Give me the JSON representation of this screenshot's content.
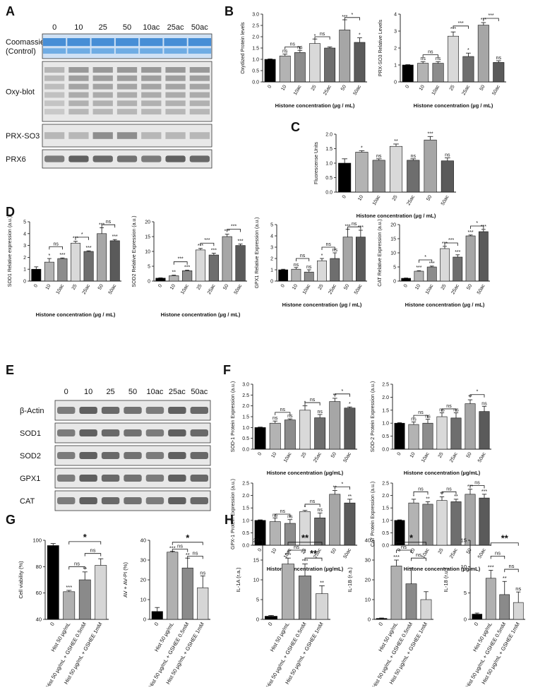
{
  "figure": {
    "letters": [
      "A",
      "B",
      "C",
      "D",
      "E",
      "F",
      "G",
      "H"
    ]
  },
  "panel_a": {
    "lanes": [
      "0",
      "10",
      "25",
      "50",
      "10ac",
      "25ac",
      "50ac"
    ],
    "rows": [
      {
        "label": "Coomassie\n(Control)",
        "style": "coomassie"
      },
      {
        "label": "Oxy-blot",
        "style": "smear"
      },
      {
        "label": "PRX-SO3",
        "style": "faint"
      },
      {
        "label": "PRX6",
        "style": "bands"
      }
    ]
  },
  "panel_e": {
    "lanes": [
      "0",
      "10",
      "25",
      "50",
      "10ac",
      "25ac",
      "50ac"
    ],
    "rows": [
      "β-Actin",
      "SOD1",
      "SOD2",
      "GPX1",
      "CAT"
    ]
  },
  "chart_data": [
    {
      "id": "B1",
      "type": "bar",
      "ylabel": "Oxydized Protein levels",
      "xlabel": "Histone concentration (µg / mL)",
      "categories": [
        "0",
        "10",
        "10ac",
        "25",
        "25ac",
        "50",
        "50ac"
      ],
      "values": [
        1.0,
        1.15,
        1.3,
        1.7,
        1.5,
        2.3,
        1.75
      ],
      "errors": [
        0.02,
        0.08,
        0.1,
        0.2,
        0.05,
        0.45,
        0.2
      ],
      "ylim": [
        0,
        3.0
      ],
      "yticks": [
        0,
        0.5,
        1.0,
        1.5,
        2.0,
        2.5,
        3.0
      ],
      "sig": [
        "",
        "ns",
        "ns",
        "*",
        "",
        "***",
        "*"
      ],
      "brackets": [
        {
          "a": 1,
          "b": 2,
          "label": "ns",
          "level": 1.55
        },
        {
          "a": 3,
          "b": 4,
          "label": "ns",
          "level": 2.0
        },
        {
          "a": 5,
          "b": 6,
          "label": "*",
          "level": 2.85
        }
      ]
    },
    {
      "id": "B2",
      "type": "bar",
      "ylabel": "PRX-SO3 Relative Levels",
      "xlabel": "Histone concentration (µg / mL)",
      "categories": [
        "0",
        "10",
        "10ac",
        "25",
        "25ac",
        "50",
        "50ac"
      ],
      "values": [
        1.0,
        1.1,
        1.1,
        2.7,
        1.5,
        3.35,
        1.15
      ],
      "errors": [
        0.02,
        0.1,
        0.1,
        0.25,
        0.2,
        0.15,
        0.1
      ],
      "ylim": [
        0,
        4
      ],
      "yticks": [
        0,
        1,
        2,
        3,
        4
      ],
      "sig": [
        "",
        "ns",
        "ns",
        "***",
        "*",
        "***",
        "ns"
      ],
      "brackets": [
        {
          "a": 1,
          "b": 2,
          "label": "ns",
          "level": 1.6
        },
        {
          "a": 3,
          "b": 4,
          "label": "***",
          "level": 3.3
        },
        {
          "a": 5,
          "b": 6,
          "label": "***",
          "level": 3.75
        }
      ]
    },
    {
      "id": "C",
      "type": "bar",
      "ylabel": "Fluorescense Units",
      "xlabel": "Histone concentration (µg / mL)",
      "categories": [
        "0",
        "10",
        "10ac",
        "25",
        "25ac",
        "50",
        "50ac"
      ],
      "values": [
        1.0,
        1.38,
        1.1,
        1.58,
        1.1,
        1.8,
        1.08
      ],
      "errors": [
        0.15,
        0.05,
        0.05,
        0.08,
        0.05,
        0.12,
        0.1
      ],
      "ylim": [
        0,
        2.0
      ],
      "yticks": [
        0,
        0.5,
        1.0,
        1.5,
        2.0
      ],
      "sig": [
        "",
        "*",
        "ns",
        "**",
        "ns",
        "***",
        "ns"
      ],
      "brackets": []
    },
    {
      "id": "D1",
      "type": "bar",
      "ylabel": "SOD1 Relative expression (a.u.)",
      "xlabel": "",
      "categories": [
        "0",
        "10",
        "10ac",
        "25",
        "25ac",
        "50",
        "50ac"
      ],
      "values": [
        1.0,
        1.6,
        1.9,
        3.2,
        2.5,
        4.0,
        3.4
      ],
      "errors": [
        0.2,
        0.3,
        0.05,
        0.15,
        0.05,
        0.5,
        0.1
      ],
      "ylim": [
        0,
        5
      ],
      "yticks": [
        0,
        1,
        2,
        3,
        4,
        5
      ],
      "sig": [
        "",
        "*",
        "***",
        "***",
        "***",
        "***",
        "***"
      ],
      "brackets": [
        {
          "a": 1,
          "b": 2,
          "label": "ns",
          "level": 2.9
        },
        {
          "a": 3,
          "b": 4,
          "label": "*",
          "level": 3.7
        },
        {
          "a": 5,
          "b": 6,
          "label": "ns",
          "level": 4.75
        }
      ]
    },
    {
      "id": "D2",
      "type": "bar",
      "ylabel": "SOD2 Relative Expression (a.u.)",
      "xlabel": "",
      "categories": [
        "0",
        "10",
        "10ac",
        "25",
        "25ac",
        "50",
        "50ac"
      ],
      "values": [
        1.0,
        1.8,
        3.5,
        10.5,
        8.8,
        15.0,
        12.0
      ],
      "errors": [
        0.1,
        0.2,
        0.2,
        0.5,
        0.6,
        0.8,
        0.5
      ],
      "ylim": [
        0,
        20
      ],
      "yticks": [
        0,
        5,
        10,
        15,
        20
      ],
      "sig": [
        "",
        "**",
        "***",
        "***",
        "***",
        "***",
        "***"
      ],
      "brackets": [
        {
          "a": 1,
          "b": 2,
          "label": "***",
          "level": 6.5
        },
        {
          "a": 3,
          "b": 4,
          "label": "***",
          "level": 12.8
        },
        {
          "a": 5,
          "b": 6,
          "label": "***",
          "level": 17.5
        }
      ]
    },
    {
      "id": "D3",
      "type": "bar",
      "ylabel": "GPX1 Relative Expression (a.u.)",
      "xlabel": "Histone concentration (µg / mL)",
      "categories": [
        "0",
        "10",
        "10ac",
        "25",
        "25ac",
        "50",
        "50ac"
      ],
      "values": [
        1.0,
        1.05,
        0.8,
        1.8,
        2.0,
        3.9,
        3.9
      ],
      "errors": [
        0.05,
        0.15,
        0.2,
        0.2,
        0.5,
        0.7,
        0.6
      ],
      "ylim": [
        0,
        5
      ],
      "yticks": [
        0,
        1,
        2,
        3,
        4,
        5
      ],
      "sig": [
        "",
        "ns",
        "ns",
        "*",
        "ns",
        "***",
        "***"
      ],
      "brackets": [
        {
          "a": 1,
          "b": 2,
          "label": "ns",
          "level": 2.0
        },
        {
          "a": 3,
          "b": 4,
          "label": "ns",
          "level": 3.0
        },
        {
          "a": 5,
          "b": 6,
          "label": "ns",
          "level": 4.8
        }
      ]
    },
    {
      "id": "D4",
      "type": "bar",
      "ylabel": "CAT Relative Expression (a.u.)",
      "xlabel": "Histone concentration (µg / mL)",
      "categories": [
        "0",
        "10",
        "10ac",
        "25",
        "25ac",
        "50",
        "50ac"
      ],
      "values": [
        1.0,
        3.5,
        5.0,
        11.5,
        8.5,
        16.0,
        17.5
      ],
      "errors": [
        0.1,
        0.2,
        0.3,
        0.8,
        0.8,
        0.3,
        0.8
      ],
      "ylim": [
        0,
        20
      ],
      "yticks": [
        0,
        5,
        10,
        15,
        20
      ],
      "sig": [
        "",
        "***",
        "***",
        "***",
        "***",
        "***",
        "***"
      ],
      "brackets": [
        {
          "a": 1,
          "b": 2,
          "label": "*",
          "level": 7.5
        },
        {
          "a": 3,
          "b": 4,
          "label": "***",
          "level": 13.5
        },
        {
          "a": 5,
          "b": 6,
          "label": "*",
          "level": 19.5
        }
      ]
    },
    {
      "id": "F1",
      "type": "bar",
      "ylabel": "SOD-1 Protein Expression (a.u.)",
      "xlabel": "Histone concentration (µg/mL)",
      "categories": [
        "0",
        "10",
        "10ac",
        "25",
        "25ac",
        "50",
        "50ac"
      ],
      "values": [
        1.0,
        1.2,
        1.35,
        1.8,
        1.45,
        2.2,
        1.9
      ],
      "errors": [
        0.02,
        0.1,
        0.05,
        0.2,
        0.15,
        0.15,
        0.05
      ],
      "ylim": [
        0,
        3.0
      ],
      "yticks": [
        0,
        0.5,
        1.0,
        1.5,
        2.0,
        2.5,
        3.0
      ],
      "sig": [
        "",
        "ns",
        "ns",
        "*",
        "ns",
        "**",
        "*"
      ],
      "brackets": [
        {
          "a": 1,
          "b": 2,
          "label": "ns",
          "level": 1.7
        },
        {
          "a": 3,
          "b": 4,
          "label": "ns",
          "level": 2.15
        },
        {
          "a": 5,
          "b": 6,
          "label": "*",
          "level": 2.55
        }
      ]
    },
    {
      "id": "F2",
      "type": "bar",
      "ylabel": "SOD-2 Protein Expression (a.u.)",
      "xlabel": "Histone concentration (µg/mL)",
      "categories": [
        "0",
        "10",
        "10ac",
        "25",
        "25ac",
        "50",
        "50ac"
      ],
      "values": [
        1.0,
        0.95,
        1.0,
        1.25,
        1.2,
        1.75,
        1.45
      ],
      "errors": [
        0.02,
        0.1,
        0.15,
        0.15,
        0.2,
        0.15,
        0.2
      ],
      "ylim": [
        0,
        2.5
      ],
      "yticks": [
        0,
        0.5,
        1.0,
        1.5,
        2.0,
        2.5
      ],
      "sig": [
        "",
        "ns",
        "ns",
        "ns",
        "ns",
        "**",
        "ns"
      ],
      "brackets": [
        {
          "a": 1,
          "b": 2,
          "label": "ns",
          "level": 1.3
        },
        {
          "a": 3,
          "b": 4,
          "label": "ns",
          "level": 1.55
        },
        {
          "a": 5,
          "b": 6,
          "label": "*",
          "level": 2.1
        }
      ]
    },
    {
      "id": "F3",
      "type": "bar",
      "ylabel": "GPX-1 Protein Expression (a.u.)",
      "xlabel": "Histone concentration (µg/mL)",
      "categories": [
        "0",
        "10",
        "10ac",
        "25",
        "25ac",
        "50",
        "50ac"
      ],
      "values": [
        1.0,
        0.95,
        0.88,
        1.35,
        1.1,
        2.05,
        1.7
      ],
      "errors": [
        0.02,
        0.15,
        0.15,
        0.05,
        0.2,
        0.15,
        0.15
      ],
      "ylim": [
        0,
        2.5
      ],
      "yticks": [
        0,
        0.5,
        1.0,
        1.5,
        2.0,
        2.5
      ],
      "sig": [
        "",
        "ns",
        "ns",
        "*",
        "ns",
        "**",
        "**"
      ],
      "brackets": [
        {
          "a": 1,
          "b": 2,
          "label": "ns",
          "level": 1.25
        },
        {
          "a": 3,
          "b": 4,
          "label": "ns",
          "level": 1.65
        },
        {
          "a": 5,
          "b": 6,
          "label": "*",
          "level": 2.35
        }
      ]
    },
    {
      "id": "F4",
      "type": "bar",
      "ylabel": "CAT Protein Expression (a.u.)",
      "xlabel": "Histone concentration (µg/mL)",
      "categories": [
        "0",
        "10",
        "10ac",
        "25",
        "25ac",
        "50",
        "50ac"
      ],
      "values": [
        1.0,
        1.7,
        1.65,
        1.8,
        1.75,
        2.05,
        1.9
      ],
      "errors": [
        0.02,
        0.15,
        0.1,
        0.15,
        0.1,
        0.2,
        0.15
      ],
      "ylim": [
        0,
        2.5
      ],
      "yticks": [
        0,
        0.5,
        1.0,
        1.5,
        2.0,
        2.5
      ],
      "sig": [
        "",
        "*",
        "**",
        "**",
        "**",
        "***",
        "***"
      ],
      "brackets": [
        {
          "a": 1,
          "b": 2,
          "label": "ns",
          "level": 2.15
        },
        {
          "a": 3,
          "b": 4,
          "label": "ns",
          "level": 2.15
        },
        {
          "a": 5,
          "b": 6,
          "label": "ns",
          "level": 2.4
        }
      ]
    },
    {
      "id": "G1",
      "type": "bar",
      "ylabel": "Cell viability (%)",
      "xlabel": "",
      "categories": [
        "0",
        "Hist 50 µg/mL",
        "Hist 50 µg/mL + GSHEE 0.5mM",
        "Hist 50 µg/mL + GSHEE 1mM"
      ],
      "values": [
        96,
        61,
        70,
        81
      ],
      "errors": [
        1.5,
        1,
        6,
        5
      ],
      "ylim": [
        40,
        100
      ],
      "yticks": [
        40,
        60,
        80,
        100
      ],
      "sig": [
        "",
        "***",
        "**",
        ""
      ],
      "brackets": [
        {
          "a": 1,
          "b": 3,
          "label": "*",
          "level": 99
        },
        {
          "a": 1,
          "b": 2,
          "label": "ns",
          "level": 80
        },
        {
          "a": 2,
          "b": 3,
          "label": "ns",
          "level": 90
        }
      ]
    },
    {
      "id": "G2",
      "type": "bar",
      "ylabel": "AV + AV-PI (%)",
      "xlabel": "",
      "categories": [
        "0",
        "Hist 50 µg/mL",
        "Hist 50 µg/mL + GSHEE 0.5mM",
        "Hist 50 µg/mL + GSHEE 1mM"
      ],
      "values": [
        4,
        34,
        26,
        16
      ],
      "errors": [
        2,
        0.5,
        5,
        6
      ],
      "ylim": [
        0,
        40
      ],
      "yticks": [
        0,
        10,
        20,
        30,
        40
      ],
      "sig": [
        "",
        "***",
        "**",
        "ns"
      ],
      "brackets": [
        {
          "a": 1,
          "b": 3,
          "label": "*",
          "level": 39
        },
        {
          "a": 1,
          "b": 2,
          "label": "ns",
          "level": 35.5
        },
        {
          "a": 2,
          "b": 3,
          "label": "ns",
          "level": 32
        }
      ]
    },
    {
      "id": "H1",
      "type": "bar",
      "ylabel": "IL-1A (r.a.)",
      "xlabel": "",
      "categories": [
        "0",
        "Hist 50 µg/mL",
        "Hist 50 µg/mL + GSHEE 0.5mM",
        "Hist 50 µg/mL + GSHEE 1mM"
      ],
      "values": [
        0.8,
        14,
        11,
        6.5
      ],
      "errors": [
        0.2,
        1.5,
        3,
        2
      ],
      "ylim": [
        0,
        20
      ],
      "yticks": [
        0,
        5,
        10,
        15,
        20
      ],
      "sig": [
        "",
        "***",
        "***",
        "**"
      ],
      "brackets": [
        {
          "a": 1,
          "b": 3,
          "label": "**",
          "level": 19.5
        },
        {
          "a": 1,
          "b": 2,
          "label": "ns",
          "level": 17.5
        },
        {
          "a": 2,
          "b": 3,
          "label": "**",
          "level": 15.5
        }
      ]
    },
    {
      "id": "H2",
      "type": "bar",
      "ylabel": "IL-1B (r.a.)",
      "xlabel": "",
      "categories": [
        "0",
        "Hist 50 µg/mL",
        "Hist 50 µg/mL + GSHEE 0.5mM",
        "Hist 50 µg/mL + GSHEE 1mM"
      ],
      "values": [
        0.5,
        27,
        18,
        10
      ],
      "errors": [
        0.2,
        3,
        8,
        4
      ],
      "ylim": [
        0,
        40
      ],
      "yticks": [
        0,
        10,
        20,
        30,
        40
      ],
      "sig": [
        "",
        "***",
        "",
        ""
      ],
      "brackets": [
        {
          "a": 1,
          "b": 3,
          "label": "*",
          "level": 39
        },
        {
          "a": 1,
          "b": 2,
          "label": "ns",
          "level": 35
        },
        {
          "a": 2,
          "b": 3,
          "label": "ns",
          "level": 31
        }
      ]
    },
    {
      "id": "H3",
      "type": "bar",
      "ylabel": "IL-18 (r.u.)",
      "xlabel": "",
      "categories": [
        "0",
        "Hist 50 µg/mL",
        "Hist 50 µg/mL + GSHEE 0.5mM",
        "Hist 50 µg/mL + GSHEE 1mM"
      ],
      "values": [
        1.0,
        7.8,
        4.7,
        3.2
      ],
      "errors": [
        0.2,
        1.5,
        2.5,
        2
      ],
      "ylim": [
        0,
        15
      ],
      "yticks": [
        0,
        5,
        10,
        15
      ],
      "sig": [
        "",
        "***",
        "**",
        "ns"
      ],
      "brackets": [
        {
          "a": 1,
          "b": 3,
          "label": "**",
          "level": 14.5
        },
        {
          "a": 1,
          "b": 2,
          "label": "ns",
          "level": 12
        },
        {
          "a": 2,
          "b": 3,
          "label": "ns",
          "level": 9.5
        }
      ]
    }
  ]
}
